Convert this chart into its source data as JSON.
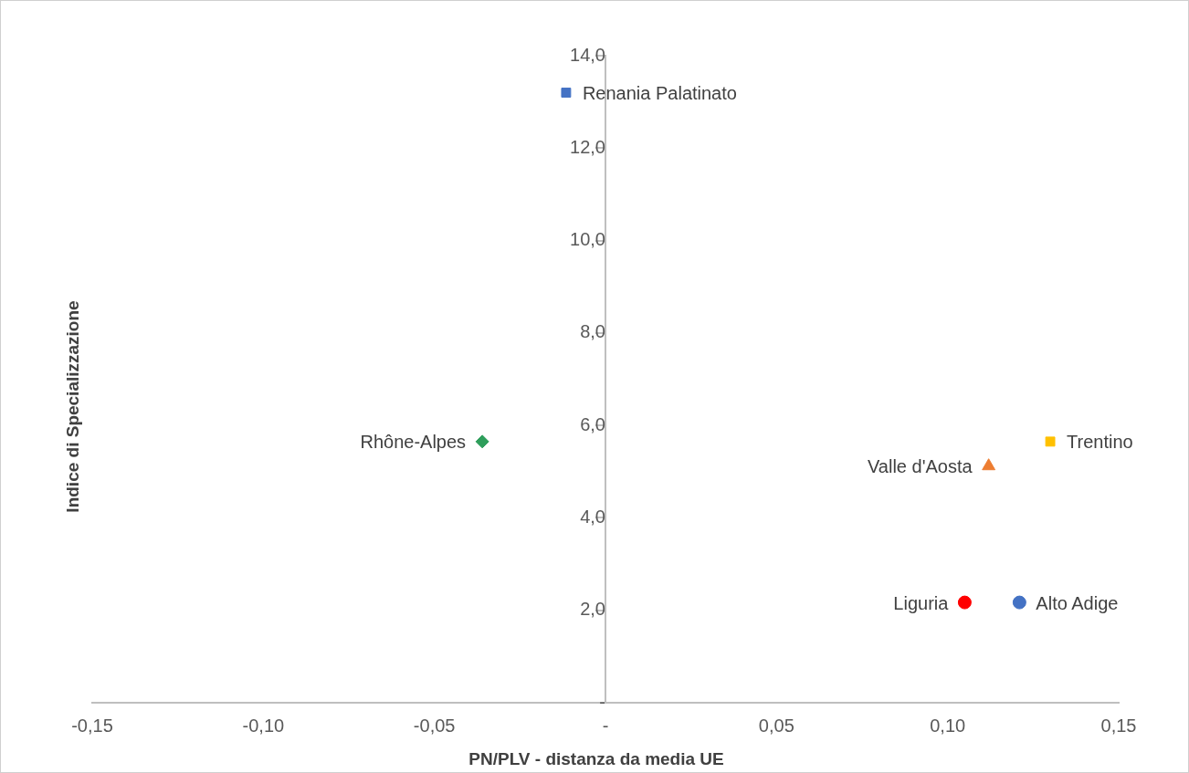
{
  "chart_data": {
    "type": "scatter",
    "xlabel": "PN/PLV - distanza da media UE",
    "ylabel": "Indice di Specializzazione",
    "xlim": [
      -0.15,
      0.15
    ],
    "xticks": [
      {
        "value": -0.15,
        "label": "-0,15"
      },
      {
        "value": -0.1,
        "label": "-0,10"
      },
      {
        "value": -0.05,
        "label": "-0,05"
      },
      {
        "value": 0,
        "label": "-"
      },
      {
        "value": 0.05,
        "label": "0,05"
      },
      {
        "value": 0.1,
        "label": "0,10"
      },
      {
        "value": 0.15,
        "label": "0,15"
      }
    ],
    "ylim": [
      0,
      14
    ],
    "yticks": [
      {
        "value": 0,
        "label": "-"
      },
      {
        "value": 2,
        "label": "2,0"
      },
      {
        "value": 4,
        "label": "4,0"
      },
      {
        "value": 6,
        "label": "6,0"
      },
      {
        "value": 8,
        "label": "8,0"
      },
      {
        "value": 10,
        "label": "10,0"
      },
      {
        "value": 12,
        "label": "12,0"
      },
      {
        "value": 14,
        "label": "14,0"
      }
    ],
    "grid": false,
    "legend": false,
    "series": [
      {
        "name": "Renania Palatinato",
        "color": "#4472c4",
        "marker": "square",
        "x": [
          -0.0115
        ],
        "values": [
          13.2
        ]
      },
      {
        "name": "Rhône-Alpes",
        "color": "#2e9e5b",
        "marker": "diamond",
        "x": [
          -0.036
        ],
        "values": [
          5.65
        ]
      },
      {
        "name": "Trentino",
        "color": "#ffc000",
        "marker": "square",
        "x": [
          0.13
        ],
        "values": [
          5.65
        ]
      },
      {
        "name": "Valle d'Aosta",
        "color": "#ed7d31",
        "marker": "triangle",
        "x": [
          0.112
        ],
        "values": [
          5.12
        ]
      },
      {
        "name": "Liguria",
        "color": "#ff0000",
        "marker": "circle",
        "x": [
          0.105
        ],
        "values": [
          2.17
        ]
      },
      {
        "name": "Alto Adige",
        "color": "#4472c4",
        "marker": "circle",
        "x": [
          0.121
        ],
        "values": [
          2.17
        ]
      }
    ]
  }
}
